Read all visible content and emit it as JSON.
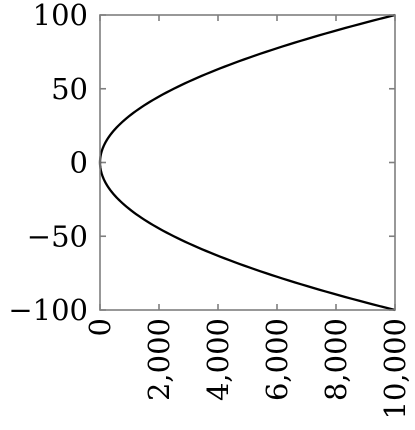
{
  "chart_data": {
    "type": "line",
    "title": "",
    "xlabel": "",
    "ylabel": "",
    "xlim": [
      0,
      10000
    ],
    "ylim": [
      -100,
      100
    ],
    "grid": false,
    "x_ticks": [
      {
        "value": 0,
        "label": "0"
      },
      {
        "value": 2000,
        "label": "2,000"
      },
      {
        "value": 4000,
        "label": "4,000"
      },
      {
        "value": 6000,
        "label": "6,000"
      },
      {
        "value": 8000,
        "label": "8,000"
      },
      {
        "value": 10000,
        "label": "10,000"
      }
    ],
    "y_ticks": [
      {
        "value": 100,
        "label": "100"
      },
      {
        "value": 50,
        "label": "50"
      },
      {
        "value": 0,
        "label": "0"
      },
      {
        "value": -50,
        "label": "−50"
      },
      {
        "value": -100,
        "label": "−100"
      }
    ],
    "series": [
      {
        "color": "#000000",
        "x": [
          10000,
          8100,
          6400,
          4900,
          3600,
          2500,
          1600,
          900,
          400,
          100,
          0,
          100,
          400,
          900,
          1600,
          2500,
          3600,
          4900,
          6400,
          8100,
          10000
        ],
        "y": [
          -100,
          -90,
          -80,
          -70,
          -60,
          -50,
          -40,
          -30,
          -20,
          -10,
          0,
          10,
          20,
          30,
          40,
          50,
          60,
          70,
          80,
          90,
          100
        ]
      }
    ]
  }
}
